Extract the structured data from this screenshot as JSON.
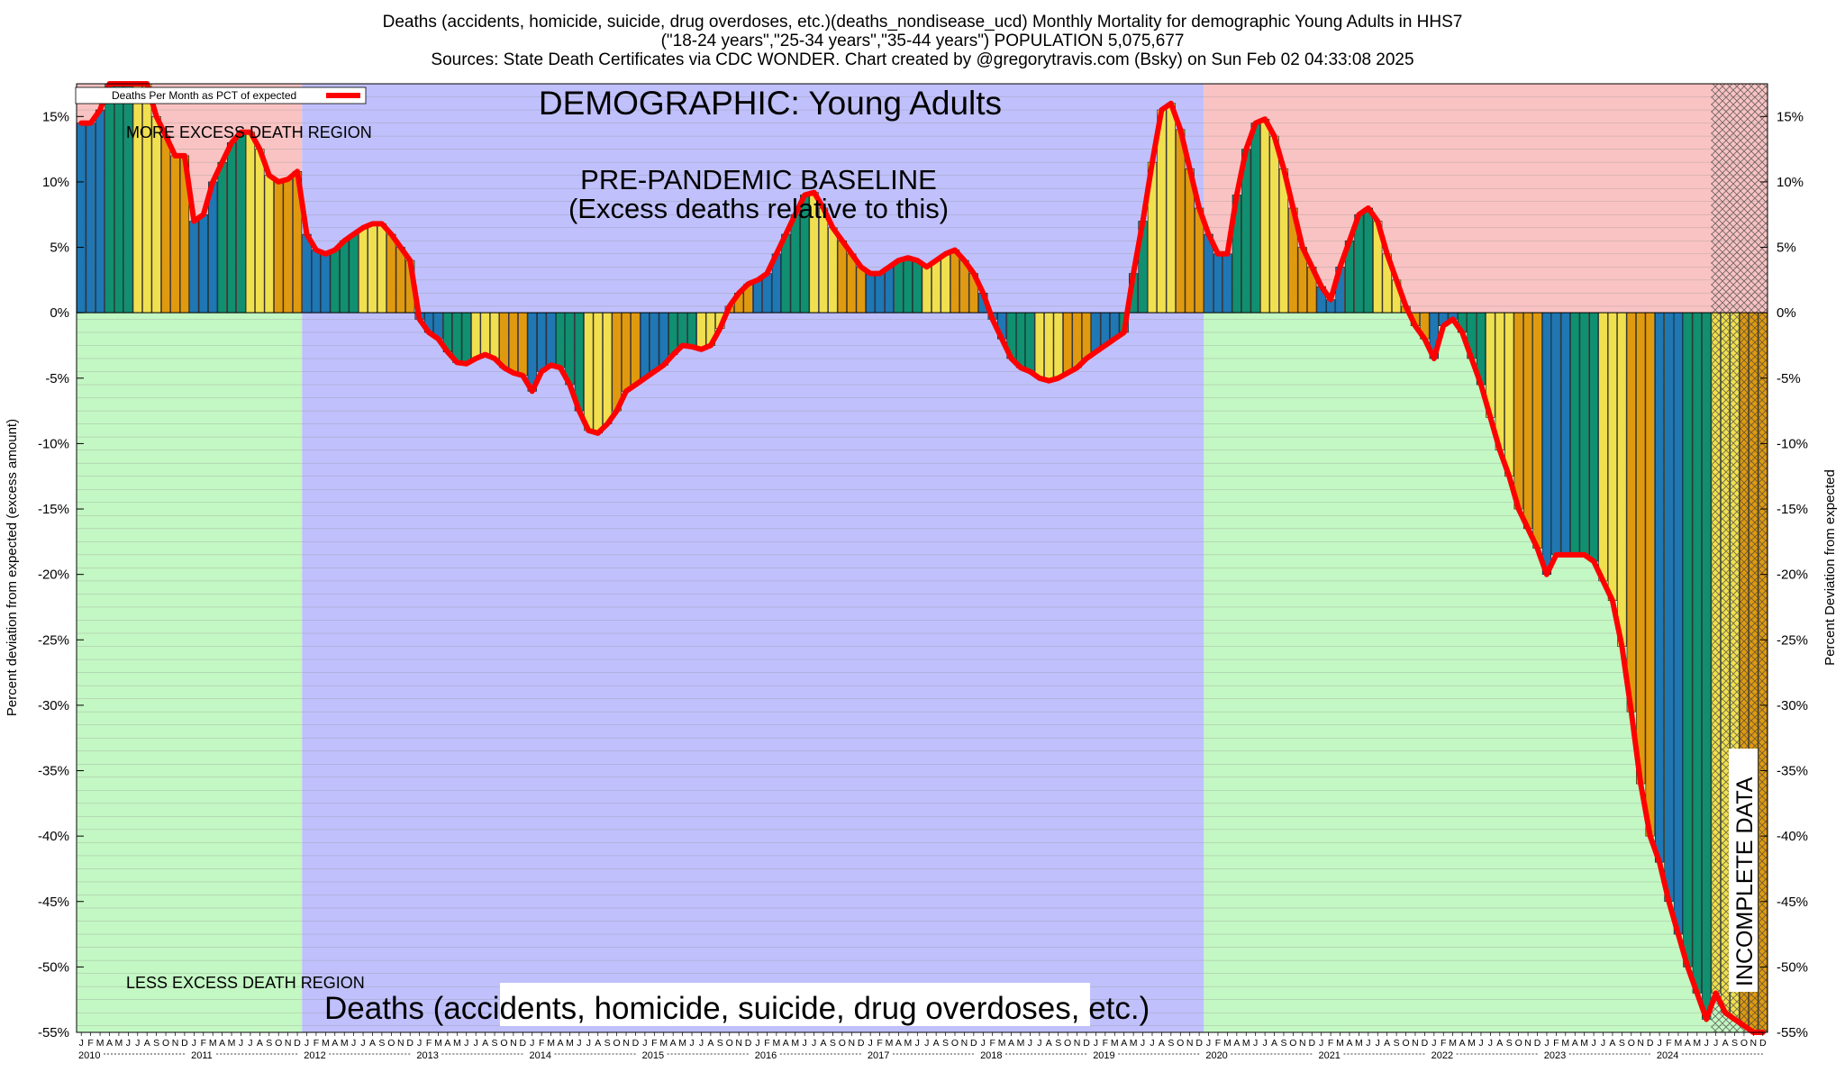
{
  "header": {
    "line1": "Deaths (accidents, homicide, suicide, drug overdoses, etc.)(deaths_nondisease_ucd) Monthly Mortality for demographic Young Adults in HHS7",
    "line2": "(\"18-24 years\",\"25-34 years\",\"35-44 years\") POPULATION 5,075,677",
    "line3": "Sources: State Death Certificates via CDC WONDER.              Chart created by @gregorytravis.com (Bsky) on Sun Feb 02 04:33:08 2025"
  },
  "annotations": {
    "demographic": "DEMOGRAPHIC: Young Adults",
    "baseline_line1": "PRE-PANDEMIC BASELINE",
    "baseline_line2": "(Excess deaths relative to this)",
    "more_region": "MORE EXCESS DEATH REGION",
    "less_region": "LESS EXCESS DEATH REGION",
    "bottom_title": "Deaths (accidents, homicide, suicide, drug overdoses, etc.)",
    "incomplete": "INCOMPLETE DATA"
  },
  "colors": {
    "red_region": "#f9c3c3",
    "green_region": "#c3f7c3",
    "baseline_region": "#c0c0fc",
    "line": "#ff0000",
    "bar_colors": [
      "#1f77b4",
      "#109070",
      "#f0e050",
      "#e09a10"
    ]
  },
  "chart_data": {
    "type": "bar",
    "title": "",
    "ylabel_left": "Percent deviation from expected (excess amount)",
    "ylabel_right": "Percent Deviation from expected",
    "legend": "Deaths Per Month as PCT of expected",
    "legend_position": "top-left",
    "ylim": [
      -55,
      17.5
    ],
    "yticks": [
      15,
      10,
      5,
      0,
      -5,
      -10,
      -15,
      -20,
      -25,
      -30,
      -35,
      -40,
      -45,
      -50,
      -55
    ],
    "ytick_labels": [
      "15%",
      "10%",
      "5%",
      "0%",
      "-5%",
      "-10%",
      "-15%",
      "-20%",
      "-25%",
      "-30%",
      "-35%",
      "-40%",
      "-45%",
      "-50%",
      "-55%"
    ],
    "month_letters": [
      "J",
      "F",
      "M",
      "A",
      "M",
      "J",
      "J",
      "A",
      "S",
      "O",
      "N",
      "D"
    ],
    "years": [
      "2010",
      "2011",
      "2012",
      "2013",
      "2014",
      "2015",
      "2016",
      "2017",
      "2018",
      "2019",
      "2020",
      "2021",
      "2022",
      "2023",
      "2024"
    ],
    "start": "2010-01",
    "end": "2024-12",
    "baseline_period": [
      "2012-01",
      "2019-12"
    ],
    "incomplete_from": "2024-07",
    "values": [
      14.5,
      14.5,
      15.5,
      17.5,
      17.5,
      17.5,
      17.5,
      17.5,
      15.0,
      13.5,
      12.0,
      12.0,
      7.0,
      7.5,
      10.0,
      11.5,
      13.0,
      13.8,
      13.8,
      12.5,
      10.5,
      10.0,
      10.2,
      10.8,
      6.0,
      4.8,
      4.5,
      4.8,
      5.5,
      6.0,
      6.5,
      6.8,
      6.8,
      6.0,
      5.0,
      4.0,
      -0.5,
      -1.5,
      -2.0,
      -3.0,
      -3.8,
      -3.9,
      -3.5,
      -3.2,
      -3.5,
      -4.2,
      -4.6,
      -4.8,
      -6.0,
      -4.5,
      -4.0,
      -4.2,
      -5.5,
      -7.5,
      -9.0,
      -9.2,
      -8.5,
      -7.5,
      -6.0,
      -5.5,
      -5.0,
      -4.5,
      -4.0,
      -3.2,
      -2.5,
      -2.6,
      -2.8,
      -2.5,
      -1.2,
      0.5,
      1.5,
      2.2,
      2.5,
      3.0,
      4.5,
      6.0,
      7.5,
      9.0,
      9.2,
      8.0,
      6.5,
      5.5,
      4.5,
      3.5,
      3.0,
      3.0,
      3.5,
      4.0,
      4.2,
      4.0,
      3.5,
      4.0,
      4.5,
      4.8,
      4.0,
      3.0,
      1.5,
      -0.5,
      -2.0,
      -3.5,
      -4.2,
      -4.5,
      -5.0,
      -5.2,
      -5.0,
      -4.6,
      -4.2,
      -3.5,
      -3.0,
      -2.5,
      -2.0,
      -1.5,
      3.0,
      7.0,
      11.5,
      15.5,
      16.0,
      14.0,
      11.0,
      8.0,
      6.0,
      4.5,
      4.5,
      9.0,
      12.5,
      14.5,
      14.8,
      13.5,
      11.0,
      8.0,
      5.0,
      3.5,
      2.0,
      1.0,
      3.5,
      5.5,
      7.5,
      8.0,
      7.0,
      4.5,
      2.5,
      0.5,
      -1.0,
      -2.0,
      -3.5,
      -1.0,
      -0.5,
      -1.5,
      -3.5,
      -5.5,
      -8.0,
      -10.5,
      -12.5,
      -15.0,
      -16.5,
      -18.0,
      -20.0,
      -18.5,
      -18.5,
      -18.5,
      -18.5,
      -19.0,
      -20.5,
      -22.0,
      -25.5,
      -30.5,
      -36.0,
      -40.0,
      -42.0,
      -45.0,
      -47.5,
      -50.0,
      -52.0,
      -54.0,
      -52.0,
      -53.5,
      -54.0,
      -54.5,
      -55.0,
      -55.0
    ]
  }
}
